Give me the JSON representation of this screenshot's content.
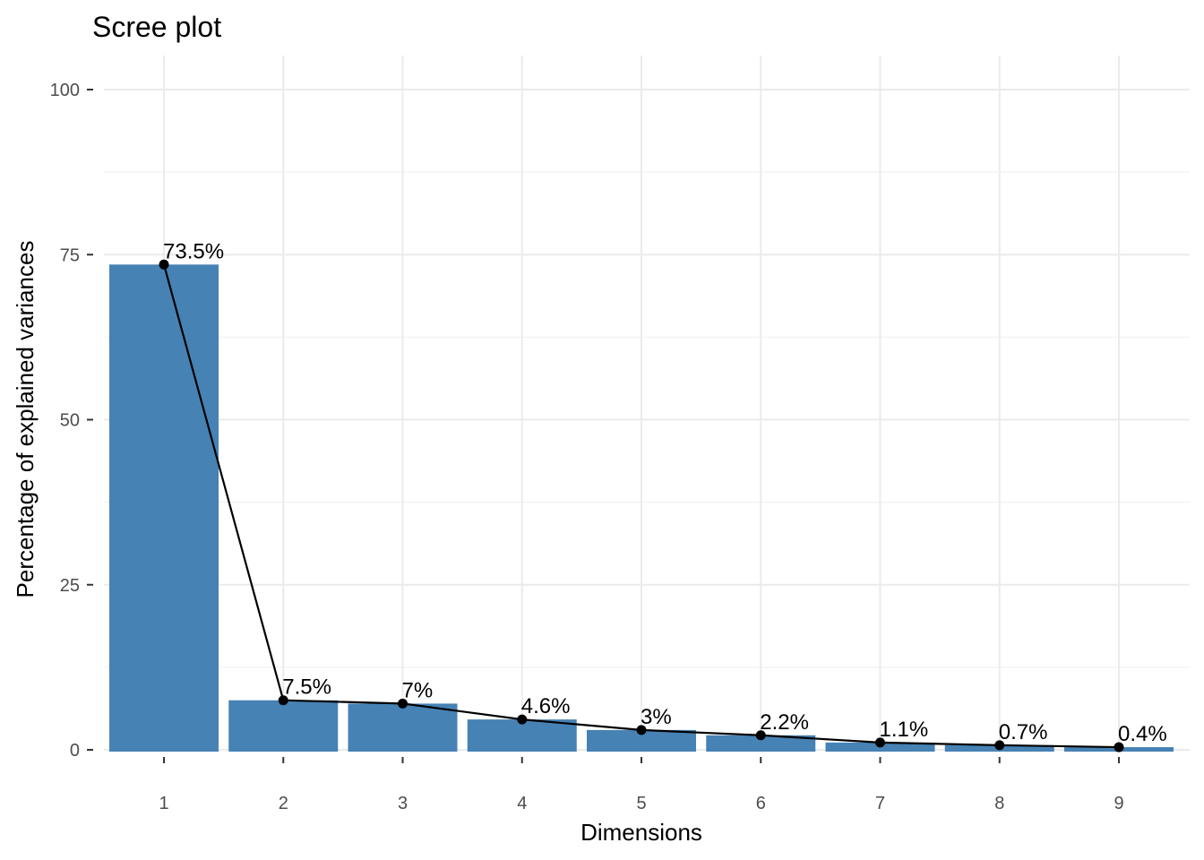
{
  "chart_data": {
    "type": "bar",
    "title": "Scree plot",
    "xlabel": "Dimensions",
    "ylabel": "Percentage of explained variances",
    "categories": [
      "1",
      "2",
      "3",
      "4",
      "5",
      "6",
      "7",
      "8",
      "9"
    ],
    "values": [
      73.5,
      7.5,
      7.0,
      4.6,
      3.0,
      2.2,
      1.1,
      0.7,
      0.4
    ],
    "data_labels": [
      "73.5%",
      "7.5%",
      "7%",
      "4.6%",
      "3%",
      "2.2%",
      "1.1%",
      "0.7%",
      "0.4%"
    ],
    "ylim": [
      0,
      100
    ],
    "yticks": [
      0,
      25,
      50,
      75,
      100
    ],
    "grid": true,
    "overlay_line": true,
    "bar_color": "#4682B4",
    "line_color": "#000000"
  }
}
